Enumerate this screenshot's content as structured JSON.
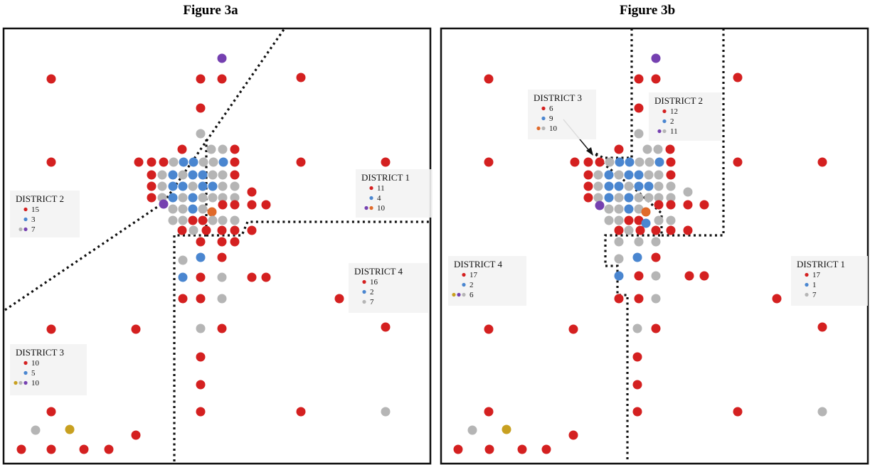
{
  "figures": [
    {
      "title": "Figure 3a",
      "districts": [
        {
          "name": "DISTRICT 1",
          "counts": [
            "11",
            "4",
            "10"
          ],
          "dots": [
            [
              "red"
            ],
            [
              "blue"
            ],
            [
              "purple",
              "orange"
            ]
          ]
        },
        {
          "name": "DISTRICT 2",
          "counts": [
            "15",
            "3",
            "7"
          ],
          "dots": [
            [
              "red"
            ],
            [
              "blue"
            ],
            [
              "gray",
              "purple"
            ]
          ]
        },
        {
          "name": "DISTRICT 3",
          "counts": [
            "10",
            "5",
            "10"
          ],
          "dots": [
            [
              "red"
            ],
            [
              "blue"
            ],
            [
              "gold",
              "gray",
              "purple"
            ]
          ]
        },
        {
          "name": "DISTRICT 4",
          "counts": [
            "16",
            "2",
            "7"
          ],
          "dots": [
            [
              "red"
            ],
            [
              "blue"
            ],
            [
              "gray"
            ]
          ]
        }
      ]
    },
    {
      "title": "Figure 3b",
      "districts": [
        {
          "name": "DISTRICT 3",
          "counts": [
            "6",
            "9",
            "10"
          ],
          "dots": [
            [
              "red"
            ],
            [
              "blue"
            ],
            [
              "orange",
              "gray"
            ]
          ]
        },
        {
          "name": "DISTRICT 2",
          "counts": [
            "12",
            "2",
            "11"
          ],
          "dots": [
            [
              "red"
            ],
            [
              "blue"
            ],
            [
              "purple",
              "gray"
            ]
          ]
        },
        {
          "name": "DISTRICT 4",
          "counts": [
            "17",
            "2",
            "6"
          ],
          "dots": [
            [
              "red"
            ],
            [
              "blue"
            ],
            [
              "gold",
              "purple",
              "gray"
            ]
          ]
        },
        {
          "name": "DISTRICT 1",
          "counts": [
            "17",
            "1",
            "7"
          ],
          "dots": [
            [
              "red"
            ],
            [
              "blue"
            ],
            [
              "gray"
            ]
          ]
        }
      ]
    }
  ],
  "colors": {
    "red": "#d42020",
    "blue": "#4a86d0",
    "gray": "#b5b5b5",
    "purple": "#7540b0",
    "orange": "#e06a2a",
    "gold": "#c8a020"
  }
}
